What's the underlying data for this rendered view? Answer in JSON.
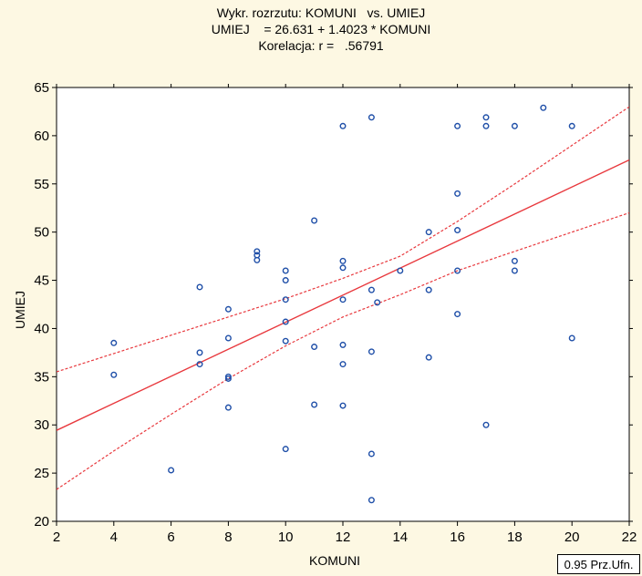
{
  "title_lines": [
    "Wykr. rozrzutu: KOMUNI   vs. UMIEJ",
    "UMIEJ    = 26.631 + 1.4023 * KOMUNI",
    "Korelacja: r =   .56791"
  ],
  "ci_label": "0.95 Prz.Ufn.",
  "colors": {
    "background": "#fdf8e3",
    "points": "#1f4fa8",
    "regression": "#e8383d",
    "grid": "#222222"
  },
  "chart_data": {
    "type": "scatter",
    "xlabel": "KOMUNI",
    "ylabel": "UMIEJ",
    "xlim": [
      2,
      22
    ],
    "ylim": [
      20,
      65
    ],
    "xticks": [
      2,
      4,
      6,
      8,
      10,
      12,
      14,
      16,
      18,
      20,
      22
    ],
    "yticks": [
      20,
      25,
      30,
      35,
      40,
      45,
      50,
      55,
      60,
      65
    ],
    "grid": false,
    "regression": {
      "intercept": 26.631,
      "slope": 1.4023,
      "r": 0.56791
    },
    "ci_upper": [
      [
        2,
        35.5
      ],
      [
        4,
        37.4
      ],
      [
        6,
        39.3
      ],
      [
        8,
        41.2
      ],
      [
        10,
        43.1
      ],
      [
        12,
        45.2
      ],
      [
        14,
        47.5
      ],
      [
        16,
        51.1
      ],
      [
        18,
        55.0
      ],
      [
        20,
        59.0
      ],
      [
        22,
        63.0
      ]
    ],
    "ci_lower": [
      [
        2,
        23.3
      ],
      [
        4,
        27.3
      ],
      [
        6,
        31.1
      ],
      [
        8,
        34.8
      ],
      [
        10,
        38.2
      ],
      [
        12,
        41.2
      ],
      [
        14,
        43.5
      ],
      [
        16,
        46.0
      ],
      [
        18,
        48.0
      ],
      [
        20,
        50.0
      ],
      [
        22,
        52.0
      ]
    ],
    "points": [
      [
        4,
        38.5
      ],
      [
        4,
        35.2
      ],
      [
        6,
        25.3
      ],
      [
        7,
        44.3
      ],
      [
        7,
        37.5
      ],
      [
        7,
        36.3
      ],
      [
        8,
        42.0
      ],
      [
        8,
        39.0
      ],
      [
        8,
        35.0
      ],
      [
        8,
        34.8
      ],
      [
        8,
        31.8
      ],
      [
        9,
        48.0
      ],
      [
        9,
        47.6
      ],
      [
        9,
        47.1
      ],
      [
        10,
        46.0
      ],
      [
        10,
        45.0
      ],
      [
        10,
        43.0
      ],
      [
        10,
        40.7
      ],
      [
        10,
        38.7
      ],
      [
        10,
        27.5
      ],
      [
        11,
        51.2
      ],
      [
        11,
        38.1
      ],
      [
        11,
        32.1
      ],
      [
        12,
        61.0
      ],
      [
        12,
        47.0
      ],
      [
        12,
        46.3
      ],
      [
        12,
        43.0
      ],
      [
        12,
        38.3
      ],
      [
        12,
        36.3
      ],
      [
        12,
        32.0
      ],
      [
        13,
        61.9
      ],
      [
        13,
        44.0
      ],
      [
        13,
        37.6
      ],
      [
        13,
        27.0
      ],
      [
        13,
        22.2
      ],
      [
        13.2,
        42.7
      ],
      [
        14,
        46.0
      ],
      [
        15,
        50.0
      ],
      [
        15,
        44.0
      ],
      [
        15,
        37.0
      ],
      [
        16,
        61.0
      ],
      [
        16,
        54.0
      ],
      [
        16,
        50.2
      ],
      [
        16,
        46.0
      ],
      [
        16,
        41.5
      ],
      [
        17,
        61.9
      ],
      [
        17,
        61.0
      ],
      [
        17,
        30.0
      ],
      [
        18,
        61.0
      ],
      [
        18,
        47.0
      ],
      [
        18,
        46.0
      ],
      [
        19,
        62.9
      ],
      [
        20,
        61.0
      ],
      [
        20,
        39.0
      ]
    ]
  }
}
